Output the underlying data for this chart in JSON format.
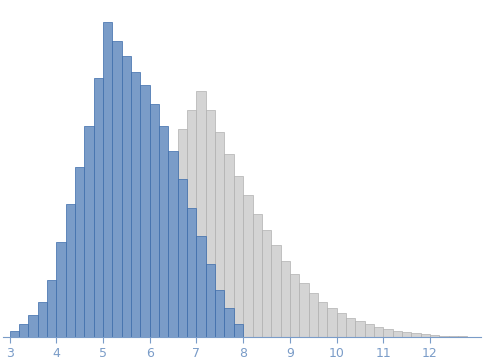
{
  "blue_left_edges": [
    3.0,
    3.2,
    3.4,
    3.6,
    3.8,
    4.0,
    4.2,
    4.4,
    4.6,
    4.8,
    5.0,
    5.2,
    5.4,
    5.6,
    5.8,
    6.0,
    6.2,
    6.4,
    6.6,
    6.8,
    7.0,
    7.2,
    7.4,
    7.6,
    7.8
  ],
  "blue_heights": [
    2,
    4,
    7,
    11,
    18,
    30,
    42,
    54,
    67,
    82,
    100,
    94,
    89,
    84,
    80,
    74,
    67,
    59,
    50,
    41,
    32,
    23,
    15,
    9,
    4
  ],
  "gray_left_edges": [
    5.8,
    6.0,
    6.2,
    6.4,
    6.6,
    6.8,
    7.0,
    7.2,
    7.4,
    7.6,
    7.8,
    8.0,
    8.2,
    8.4,
    8.6,
    8.8,
    9.0,
    9.2,
    9.4,
    9.6,
    9.8,
    10.0,
    10.2,
    10.4,
    10.6,
    10.8,
    11.0,
    11.2,
    11.4,
    11.6,
    11.8,
    12.0,
    12.2,
    12.4,
    12.6
  ],
  "gray_heights": [
    28,
    38,
    48,
    58,
    66,
    72,
    78,
    72,
    65,
    58,
    51,
    45,
    39,
    34,
    29,
    24,
    20,
    17,
    14,
    11,
    9,
    7.5,
    6,
    5,
    4,
    3,
    2.5,
    2,
    1.5,
    1.2,
    0.9,
    0.6,
    0.4,
    0.2,
    0.1
  ],
  "blue_face_color": "#7a9cc8",
  "blue_edge_color": "#3a6aaa",
  "gray_face_color": "#d4d4d4",
  "gray_edge_color": "#b0b0b0",
  "bar_width": 0.2,
  "xlim": [
    2.85,
    13.1
  ],
  "ylim": [
    0,
    106
  ],
  "xticks": [
    3,
    4,
    5,
    6,
    7,
    8,
    9,
    10,
    11,
    12
  ],
  "tick_color": "#7a9cc8",
  "spine_color": "#7a9cc8"
}
